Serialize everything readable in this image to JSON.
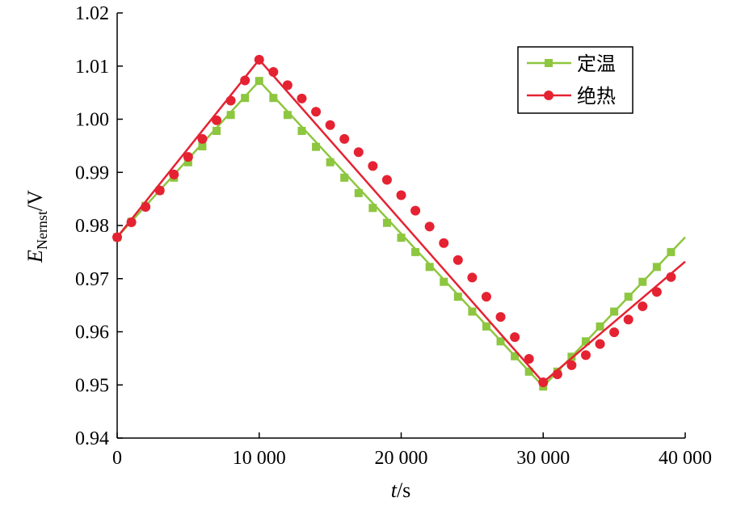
{
  "chart_data": {
    "type": "line",
    "title": "",
    "xlabel": {
      "main": "t",
      "unit": "/s"
    },
    "ylabel": {
      "main": "E",
      "subscript": "Nernst",
      "unit": "/V"
    },
    "xlim": [
      0,
      40000
    ],
    "ylim": [
      0.94,
      1.02
    ],
    "x_ticks": [
      0,
      10000,
      20000,
      30000,
      40000
    ],
    "x_tick_labels": [
      "0",
      "10 000",
      "20 000",
      "30 000",
      "40 000"
    ],
    "y_ticks": [
      0.94,
      0.95,
      0.96,
      0.97,
      0.98,
      0.99,
      1.0,
      1.01,
      1.02
    ],
    "y_tick_labels": [
      "0.94",
      "0.95",
      "0.96",
      "0.97",
      "0.98",
      "0.99",
      "1.00",
      "1.01",
      "1.02"
    ],
    "grid": false,
    "legend_position": "top-right",
    "series": [
      {
        "name": "定温",
        "color": "#8dc63f",
        "marker": "square",
        "line_points": {
          "x": [
            0,
            10000,
            30000,
            40000
          ],
          "y": [
            0.9778,
            1.0072,
            0.9497,
            0.9778
          ]
        },
        "marker_points": {
          "x": [
            0,
            1000,
            2000,
            3000,
            4000,
            5000,
            6000,
            7000,
            8000,
            9000,
            10000,
            11000,
            12000,
            13000,
            14000,
            15000,
            16000,
            17000,
            18000,
            19000,
            20000,
            21000,
            22000,
            23000,
            24000,
            25000,
            26000,
            27000,
            28000,
            29000,
            30000,
            31000,
            32000,
            33000,
            34000,
            35000,
            36000,
            37000,
            38000,
            39000
          ],
          "y": [
            0.9778,
            0.9807,
            0.9837,
            0.9866,
            0.989,
            0.9919,
            0.9949,
            0.9978,
            1.0008,
            1.004,
            1.0072,
            1.004,
            1.0008,
            0.9978,
            0.9948,
            0.9919,
            0.989,
            0.9861,
            0.9833,
            0.9805,
            0.9777,
            0.975,
            0.9722,
            0.9694,
            0.9666,
            0.9638,
            0.961,
            0.9582,
            0.9554,
            0.9525,
            0.9497,
            0.9525,
            0.9553,
            0.9582,
            0.961,
            0.9638,
            0.9666,
            0.9694,
            0.9722,
            0.975
          ]
        }
      },
      {
        "name": "绝热",
        "color": "#e52232",
        "marker": "circle",
        "line_points": {
          "x": [
            0,
            10000,
            30000,
            40000
          ],
          "y": [
            0.9778,
            1.0112,
            0.9505,
            0.9732
          ]
        },
        "marker_points": {
          "x": [
            0,
            1000,
            2000,
            3000,
            4000,
            5000,
            6000,
            7000,
            8000,
            9000,
            10000,
            11000,
            12000,
            13000,
            14000,
            15000,
            16000,
            17000,
            18000,
            19000,
            20000,
            21000,
            22000,
            23000,
            24000,
            25000,
            26000,
            27000,
            28000,
            29000,
            30000,
            31000,
            32000,
            33000,
            34000,
            35000,
            36000,
            37000,
            38000,
            39000
          ],
          "y": [
            0.9778,
            0.9806,
            0.9835,
            0.9866,
            0.9896,
            0.9929,
            0.9963,
            0.9998,
            1.0035,
            1.0073,
            1.0112,
            1.0089,
            1.0064,
            1.0039,
            1.0014,
            0.9989,
            0.9963,
            0.9938,
            0.9912,
            0.9886,
            0.9857,
            0.9828,
            0.9798,
            0.9767,
            0.9735,
            0.9702,
            0.9666,
            0.9628,
            0.959,
            0.9549,
            0.9505,
            0.952,
            0.9537,
            0.9556,
            0.9577,
            0.9599,
            0.9623,
            0.9648,
            0.9675,
            0.9703
          ]
        }
      }
    ]
  }
}
